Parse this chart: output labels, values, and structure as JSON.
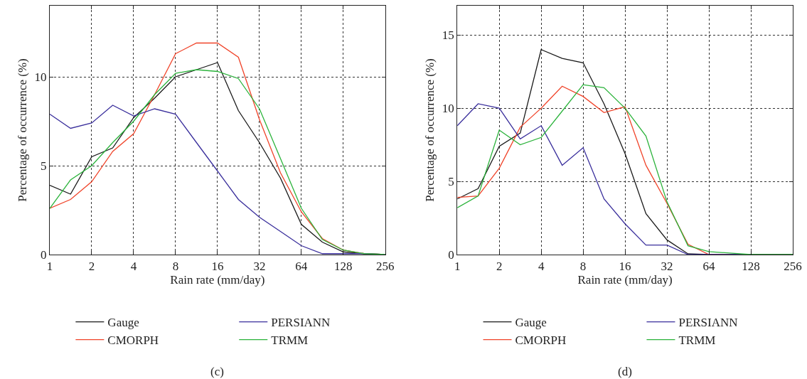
{
  "chart_data": [
    {
      "type": "line",
      "xlabel": "Rain rate (mm/day)",
      "ylabel": "Percentage of occurrence (%)",
      "annotations": [
        "(c)"
      ],
      "log": "x",
      "grid": true,
      "legend": "bottom",
      "line_style": "solid",
      "marker": "none",
      "x": [
        1,
        1.41,
        2,
        2.83,
        4,
        5.66,
        8,
        11.3,
        16,
        22.6,
        32,
        45.3,
        64,
        90.5,
        128,
        181,
        256
      ],
      "xlim": [
        1,
        256
      ],
      "xticks": [
        1,
        2,
        4,
        8,
        16,
        32,
        64,
        128,
        256
      ],
      "ylim": [
        0,
        14
      ],
      "yticks": [
        0,
        5,
        10
      ],
      "series": [
        {
          "name": "Gauge",
          "color": "#1a1a1a",
          "values": [
            3.9,
            3.4,
            5.5,
            6.0,
            7.7,
            8.8,
            10.0,
            10.4,
            10.8,
            8.1,
            6.3,
            4.3,
            1.7,
            0.7,
            0.15,
            0.05,
            0
          ]
        },
        {
          "name": "CMORPH",
          "color": "#f0442a",
          "values": [
            2.6,
            3.1,
            4.1,
            5.8,
            6.8,
            9.0,
            11.3,
            11.9,
            11.9,
            11.1,
            7.6,
            4.6,
            2.4,
            0.9,
            0.25,
            0.05,
            0
          ]
        },
        {
          "name": "PERSIANN",
          "color": "#3a2f9c",
          "values": [
            7.9,
            7.1,
            7.4,
            8.4,
            7.8,
            8.2,
            7.9,
            6.3,
            4.7,
            3.1,
            2.1,
            1.3,
            0.5,
            0.05,
            0.05,
            0.05,
            0
          ]
        },
        {
          "name": "TRMM",
          "color": "#2bb33b",
          "values": [
            2.6,
            4.2,
            5.0,
            6.3,
            7.5,
            9.0,
            10.2,
            10.4,
            10.3,
            9.9,
            8.2,
            5.4,
            2.6,
            0.85,
            0.25,
            0.05,
            0
          ]
        }
      ]
    },
    {
      "type": "line",
      "xlabel": "Rain rate (mm/day)",
      "ylabel": "Percentage of occurrence (%)",
      "annotations": [
        "(d)"
      ],
      "log": "x",
      "grid": true,
      "legend": "bottom",
      "line_style": "solid",
      "marker": "none",
      "x": [
        1,
        1.41,
        2,
        2.83,
        4,
        5.66,
        8,
        11.3,
        16,
        22.6,
        32,
        45.3,
        64,
        90.5,
        128,
        181,
        256
      ],
      "xlim": [
        1,
        256
      ],
      "xticks": [
        1,
        2,
        4,
        8,
        16,
        32,
        64,
        128,
        256
      ],
      "ylim": [
        0,
        17
      ],
      "yticks": [
        0,
        5,
        10,
        15
      ],
      "series": [
        {
          "name": "Gauge",
          "color": "#1a1a1a",
          "values": [
            3.8,
            4.5,
            7.4,
            8.3,
            14.0,
            13.4,
            13.1,
            10.3,
            6.9,
            2.8,
            1.0,
            0.05,
            0,
            0,
            0,
            0,
            0
          ]
        },
        {
          "name": "CMORPH",
          "color": "#f0442a",
          "values": [
            3.9,
            4.0,
            5.9,
            8.7,
            10.0,
            11.5,
            10.8,
            9.7,
            10.1,
            6.1,
            3.5,
            0.7,
            0,
            0,
            null,
            null,
            null
          ]
        },
        {
          "name": "PERSIANN",
          "color": "#3a2f9c",
          "values": [
            8.8,
            10.3,
            10.0,
            7.9,
            8.8,
            6.1,
            7.3,
            3.8,
            2.1,
            0.65,
            0.65,
            0,
            0,
            0,
            0,
            null,
            null
          ]
        },
        {
          "name": "TRMM",
          "color": "#2bb33b",
          "values": [
            3.2,
            4.0,
            8.5,
            7.5,
            8.0,
            9.8,
            11.6,
            11.4,
            10.0,
            8.1,
            3.6,
            0.6,
            0.2,
            0.1,
            0,
            0,
            0
          ]
        }
      ]
    }
  ]
}
